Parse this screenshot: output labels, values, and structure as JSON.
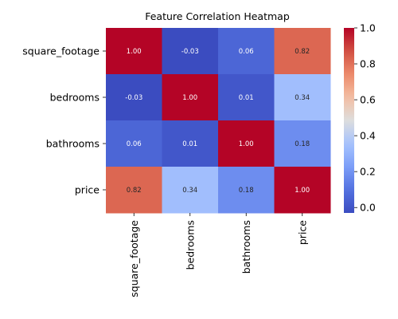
{
  "chart_data": {
    "type": "heatmap",
    "title": "Feature Correlation Heatmap",
    "row_labels": [
      "square_footage",
      "bedrooms",
      "bathrooms",
      "price"
    ],
    "col_labels": [
      "square_footage",
      "bedrooms",
      "bathrooms",
      "price"
    ],
    "values": [
      [
        1.0,
        -0.03,
        0.06,
        0.82
      ],
      [
        -0.03,
        1.0,
        0.01,
        0.34
      ],
      [
        0.06,
        0.01,
        1.0,
        0.18
      ],
      [
        0.82,
        0.34,
        0.18,
        1.0
      ]
    ],
    "value_labels": [
      [
        "1.00",
        "-0.03",
        "0.06",
        "0.82"
      ],
      [
        "-0.03",
        "1.00",
        "0.01",
        "0.34"
      ],
      [
        "0.06",
        "0.01",
        "1.00",
        "0.18"
      ],
      [
        "0.82",
        "0.34",
        "0.18",
        "1.00"
      ]
    ],
    "colormap": "coolwarm",
    "colorbar": {
      "range": [
        -0.03,
        1.0
      ],
      "ticks": [
        0.0,
        0.2,
        0.4,
        0.6,
        0.8,
        1.0
      ],
      "tick_labels": [
        "0.0",
        "0.2",
        "0.4",
        "0.6",
        "0.8",
        "1.0"
      ]
    },
    "xlabel": "",
    "ylabel": ""
  }
}
